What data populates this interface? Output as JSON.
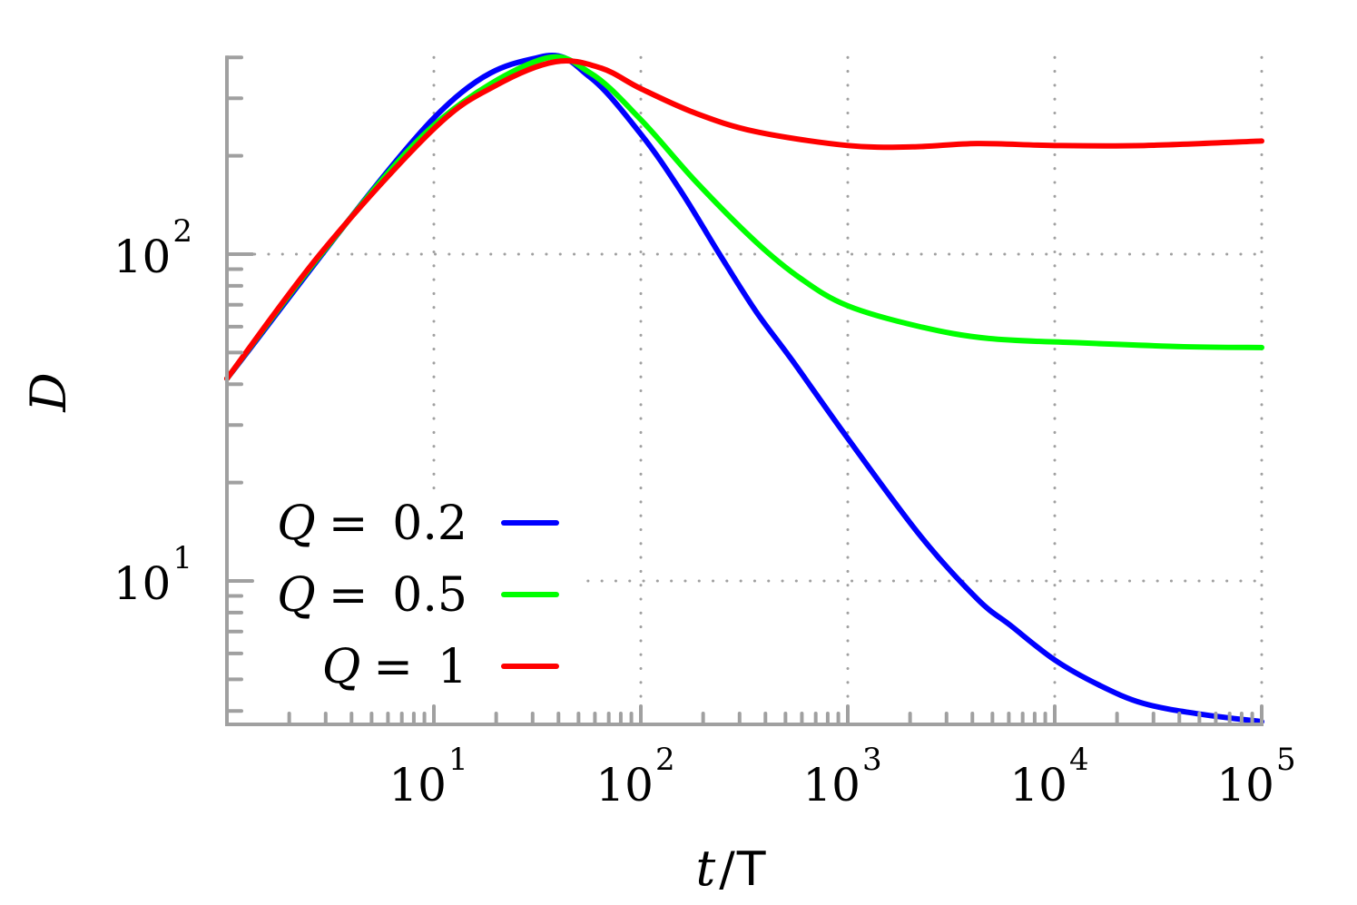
{
  "chart_data": {
    "type": "line",
    "title": "",
    "xlabel": "t/T",
    "xlabel_parts": {
      "italic": "t",
      "slash": "/",
      "upright": "T"
    },
    "ylabel": "D",
    "xscale": "log",
    "yscale": "log",
    "xlim": [
      1,
      100000
    ],
    "ylim": [
      3.64,
      400
    ],
    "grid": true,
    "grid_style": "dotted",
    "legend_position": "lower left",
    "x_ticks": [
      {
        "value": 10,
        "base": "10",
        "exp": "1"
      },
      {
        "value": 100,
        "base": "10",
        "exp": "2"
      },
      {
        "value": 1000,
        "base": "10",
        "exp": "3"
      },
      {
        "value": 10000,
        "base": "10",
        "exp": "4"
      },
      {
        "value": 100000,
        "base": "10",
        "exp": "5"
      }
    ],
    "y_ticks": [
      {
        "value": 10,
        "base": "10",
        "exp": "1"
      },
      {
        "value": 100,
        "base": "10",
        "exp": "2"
      }
    ],
    "series": [
      {
        "name": "Q = 0.2",
        "q_label": "Q",
        "q_value": "= 0.2",
        "color": "#0000ff",
        "x": [
          1,
          10,
          32.5,
          56.8,
          100,
          156,
          240,
          360,
          539,
          1000,
          2230,
          4230,
          6130,
          10000,
          16400,
          26800,
          50800,
          100000
        ],
        "values": [
          41.6,
          261,
          401,
          348,
          233,
          156,
          100,
          66.8,
          47.3,
          27.3,
          13.8,
          8.8,
          7.3,
          5.73,
          4.8,
          4.22,
          3.91,
          3.71
        ]
      },
      {
        "name": "Q = 0.5",
        "q_label": "Q",
        "q_value": "= 0.5",
        "color": "#00ff00",
        "x": [
          1,
          2.89,
          10,
          32.5,
          56.8,
          100,
          184,
          360,
          596,
          1000,
          2230,
          4800,
          13600,
          42000,
          100000
        ],
        "values": [
          41.6,
          101,
          248,
          393,
          359,
          258,
          167,
          109,
          84,
          69.5,
          60,
          55.2,
          53.5,
          52.1,
          51.8
        ]
      },
      {
        "name": "Q = 1",
        "q_label": "Q",
        "q_value": "= 1",
        "color": "#ff0000",
        "x": [
          1,
          2.89,
          10,
          19.7,
          38.7,
          64.3,
          100,
          184,
          360,
          1000,
          2060,
          4230,
          10000,
          27000,
          100000
        ],
        "values": [
          41.6,
          102,
          242,
          327,
          388,
          371,
          321,
          270,
          237,
          215,
          213,
          218,
          215,
          215,
          222
        ]
      }
    ]
  },
  "style": {
    "axis_color": "#a0a0a0",
    "grid_color": "#a0a0a0",
    "background": "#ffffff"
  }
}
